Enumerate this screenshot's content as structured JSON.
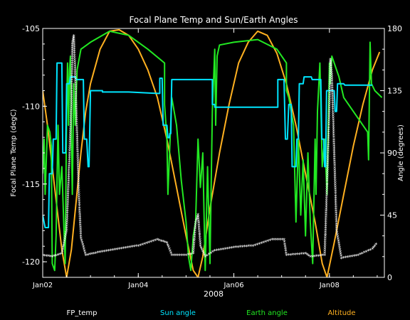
{
  "chart_data": {
    "type": "line",
    "title": "Focal Plane Temp and Sun/Earth Angles",
    "xlabel": "2008",
    "ylabel_left": "Focal Plane Temp (degC)",
    "ylabel_right": "Angle (degrees)",
    "x_ticks": [
      "Jan02",
      "Jan04",
      "Jan06",
      "Jan08"
    ],
    "x_tick_values": [
      2,
      4,
      6,
      8
    ],
    "xlim": [
      2,
      9.15
    ],
    "ylim_left": [
      -121,
      -105
    ],
    "y_ticks_left": [
      -105,
      -110,
      -115,
      -120
    ],
    "ylim_right": [
      0,
      180
    ],
    "y_ticks_right": [
      180,
      135,
      90,
      45,
      0
    ],
    "grid": false,
    "legend_placement": "bottom",
    "colors": {
      "fp_temp": "#ffffff",
      "sun_angle": "#00e5ff",
      "earth_angle": "#22e822",
      "altitude": "#ffb020",
      "axes": "#ffffff"
    },
    "series": [
      {
        "name": "FP_temp",
        "axis": "left",
        "style": "points",
        "points": [
          [
            2.0,
            -119.6
          ],
          [
            2.2,
            -119.7
          ],
          [
            2.4,
            -119.5
          ],
          [
            2.5,
            -118
          ],
          [
            2.55,
            -114
          ],
          [
            2.6,
            -110
          ],
          [
            2.62,
            -106
          ],
          [
            2.65,
            -105.5
          ],
          [
            2.68,
            -108
          ],
          [
            2.72,
            -112
          ],
          [
            2.76,
            -116
          ],
          [
            2.8,
            -118.5
          ],
          [
            2.9,
            -119.6
          ],
          [
            3.2,
            -119.4
          ],
          [
            3.6,
            -119.2
          ],
          [
            4.0,
            -119.0
          ],
          [
            4.4,
            -118.6
          ],
          [
            4.6,
            -118.8
          ],
          [
            4.7,
            -119.6
          ],
          [
            5.0,
            -119.6
          ],
          [
            5.15,
            -119.5
          ],
          [
            5.2,
            -117.5
          ],
          [
            5.25,
            -117
          ],
          [
            5.3,
            -119
          ],
          [
            5.4,
            -119.7
          ],
          [
            5.6,
            -119.3
          ],
          [
            6.0,
            -119.1
          ],
          [
            6.4,
            -119.0
          ],
          [
            6.8,
            -118.6
          ],
          [
            7.05,
            -118.6
          ],
          [
            7.1,
            -119.6
          ],
          [
            7.5,
            -119.5
          ],
          [
            7.6,
            -119.7
          ],
          [
            7.9,
            -119.6
          ],
          [
            7.95,
            -115
          ],
          [
            8.0,
            -110
          ],
          [
            8.02,
            -107
          ],
          [
            8.05,
            -108
          ],
          [
            8.1,
            -113
          ],
          [
            8.15,
            -118
          ],
          [
            8.25,
            -119.8
          ],
          [
            8.6,
            -119.6
          ],
          [
            8.9,
            -119.2
          ],
          [
            9.0,
            -118.8
          ]
        ]
      },
      {
        "name": "Sun angle",
        "axis": "right",
        "style": "line",
        "points": [
          [
            2.0,
            45
          ],
          [
            2.05,
            36
          ],
          [
            2.12,
            36
          ],
          [
            2.14,
            75
          ],
          [
            2.2,
            75
          ],
          [
            2.22,
            100
          ],
          [
            2.28,
            100
          ],
          [
            2.3,
            155
          ],
          [
            2.4,
            155
          ],
          [
            2.42,
            90
          ],
          [
            2.48,
            90
          ],
          [
            2.5,
            140
          ],
          [
            2.56,
            140
          ],
          [
            2.58,
            145
          ],
          [
            2.68,
            145
          ],
          [
            2.7,
            143
          ],
          [
            2.85,
            143
          ],
          [
            2.87,
            100
          ],
          [
            2.92,
            100
          ],
          [
            2.95,
            80
          ],
          [
            2.97,
            80
          ],
          [
            3.0,
            135
          ],
          [
            3.25,
            135
          ],
          [
            3.25,
            134
          ],
          [
            3.8,
            134
          ],
          [
            4.4,
            133
          ],
          [
            4.45,
            133
          ],
          [
            4.45,
            144
          ],
          [
            4.5,
            144
          ],
          [
            4.52,
            110
          ],
          [
            4.6,
            110
          ],
          [
            4.62,
            101
          ],
          [
            4.65,
            101
          ],
          [
            4.66,
            104
          ],
          [
            4.68,
            104
          ],
          [
            4.7,
            143
          ],
          [
            5.5,
            143
          ],
          [
            5.55,
            143
          ],
          [
            5.55,
            125
          ],
          [
            5.6,
            125
          ],
          [
            5.6,
            123
          ],
          [
            6.9,
            123
          ],
          [
            6.92,
            123
          ],
          [
            6.92,
            143
          ],
          [
            7.05,
            143
          ],
          [
            7.08,
            100
          ],
          [
            7.12,
            100
          ],
          [
            7.15,
            125
          ],
          [
            7.2,
            125
          ],
          [
            7.22,
            80
          ],
          [
            7.3,
            80
          ],
          [
            7.32,
            100
          ],
          [
            7.35,
            100
          ],
          [
            7.37,
            140
          ],
          [
            7.45,
            140
          ],
          [
            7.47,
            145
          ],
          [
            7.62,
            145
          ],
          [
            7.64,
            143
          ],
          [
            7.82,
            143
          ],
          [
            7.84,
            100
          ],
          [
            7.88,
            100
          ],
          [
            7.9,
            80
          ],
          [
            7.92,
            80
          ],
          [
            7.94,
            135
          ],
          [
            8.1,
            135
          ],
          [
            8.12,
            120
          ],
          [
            8.15,
            120
          ],
          [
            8.17,
            140
          ],
          [
            8.3,
            140
          ],
          [
            8.32,
            139
          ],
          [
            8.9,
            139
          ]
        ]
      },
      {
        "name": "Earth angle",
        "axis": "right",
        "style": "line",
        "points": [
          [
            2.0,
            75
          ],
          [
            2.03,
            100
          ],
          [
            2.05,
            60
          ],
          [
            2.08,
            90
          ],
          [
            2.1,
            110
          ],
          [
            2.15,
            105
          ],
          [
            2.18,
            95
          ],
          [
            2.2,
            10
          ],
          [
            2.25,
            5
          ],
          [
            2.28,
            30
          ],
          [
            2.32,
            110
          ],
          [
            2.35,
            60
          ],
          [
            2.4,
            80
          ],
          [
            2.45,
            30
          ],
          [
            2.47,
            10
          ],
          [
            2.5,
            120
          ],
          [
            2.52,
            155
          ],
          [
            2.54,
            110
          ],
          [
            2.56,
            150
          ],
          [
            2.58,
            160
          ],
          [
            2.6,
            100
          ],
          [
            2.62,
            60
          ],
          [
            2.65,
            140
          ],
          [
            2.68,
            110
          ],
          [
            2.72,
            150
          ],
          [
            2.8,
            165
          ],
          [
            3.0,
            170
          ],
          [
            3.4,
            178
          ],
          [
            3.8,
            175
          ],
          [
            4.2,
            165
          ],
          [
            4.55,
            155
          ],
          [
            4.55,
            125
          ],
          [
            4.6,
            100
          ],
          [
            4.62,
            60
          ],
          [
            4.7,
            130
          ],
          [
            4.8,
            110
          ],
          [
            4.9,
            70
          ],
          [
            5.0,
            40
          ],
          [
            5.05,
            15
          ],
          [
            5.1,
            5
          ],
          [
            5.15,
            30
          ],
          [
            5.2,
            40
          ],
          [
            5.25,
            100
          ],
          [
            5.3,
            65
          ],
          [
            5.35,
            90
          ],
          [
            5.4,
            5
          ],
          [
            5.45,
            80
          ],
          [
            5.5,
            10
          ],
          [
            5.55,
            120
          ],
          [
            5.6,
            165
          ],
          [
            5.62,
            110
          ],
          [
            5.65,
            160
          ],
          [
            5.7,
            168
          ],
          [
            6.0,
            170
          ],
          [
            6.5,
            172
          ],
          [
            6.9,
            165
          ],
          [
            7.1,
            155
          ],
          [
            7.1,
            135
          ],
          [
            7.15,
            130
          ],
          [
            7.2,
            120
          ],
          [
            7.25,
            110
          ],
          [
            7.3,
            40
          ],
          [
            7.35,
            100
          ],
          [
            7.4,
            45
          ],
          [
            7.45,
            85
          ],
          [
            7.5,
            30
          ],
          [
            7.55,
            90
          ],
          [
            7.6,
            40
          ],
          [
            7.65,
            10
          ],
          [
            7.7,
            100
          ],
          [
            7.72,
            60
          ],
          [
            7.75,
            120
          ],
          [
            7.8,
            155
          ],
          [
            7.85,
            80
          ],
          [
            7.9,
            100
          ],
          [
            7.95,
            60
          ],
          [
            8.0,
            155
          ],
          [
            8.02,
            140
          ],
          [
            8.05,
            160
          ],
          [
            8.1,
            155
          ],
          [
            8.2,
            145
          ],
          [
            8.3,
            130
          ],
          [
            8.5,
            120
          ],
          [
            8.7,
            110
          ],
          [
            8.8,
            105
          ],
          [
            8.82,
            85
          ],
          [
            8.85,
            170
          ],
          [
            8.88,
            140
          ],
          [
            8.95,
            135
          ],
          [
            9.1,
            130
          ]
        ]
      },
      {
        "name": "Altitude",
        "axis": "right",
        "style": "line",
        "points": [
          [
            2.0,
            135
          ],
          [
            2.1,
            110
          ],
          [
            2.2,
            80
          ],
          [
            2.3,
            50
          ],
          [
            2.4,
            20
          ],
          [
            2.5,
            0
          ],
          [
            2.6,
            20
          ],
          [
            2.7,
            55
          ],
          [
            2.8,
            90
          ],
          [
            2.9,
            120
          ],
          [
            3.0,
            140
          ],
          [
            3.2,
            165
          ],
          [
            3.4,
            178
          ],
          [
            3.6,
            179
          ],
          [
            3.8,
            175
          ],
          [
            4.0,
            165
          ],
          [
            4.2,
            150
          ],
          [
            4.4,
            130
          ],
          [
            4.6,
            100
          ],
          [
            4.8,
            65
          ],
          [
            5.0,
            30
          ],
          [
            5.15,
            5
          ],
          [
            5.25,
            0
          ],
          [
            5.35,
            15
          ],
          [
            5.5,
            50
          ],
          [
            5.7,
            90
          ],
          [
            5.9,
            125
          ],
          [
            6.1,
            155
          ],
          [
            6.3,
            170
          ],
          [
            6.5,
            178
          ],
          [
            6.7,
            175
          ],
          [
            6.9,
            162
          ],
          [
            7.1,
            140
          ],
          [
            7.3,
            110
          ],
          [
            7.5,
            75
          ],
          [
            7.7,
            40
          ],
          [
            7.85,
            10
          ],
          [
            7.95,
            0
          ],
          [
            8.1,
            25
          ],
          [
            8.3,
            60
          ],
          [
            8.5,
            95
          ],
          [
            8.7,
            125
          ],
          [
            8.9,
            150
          ],
          [
            9.05,
            163
          ]
        ]
      }
    ]
  }
}
